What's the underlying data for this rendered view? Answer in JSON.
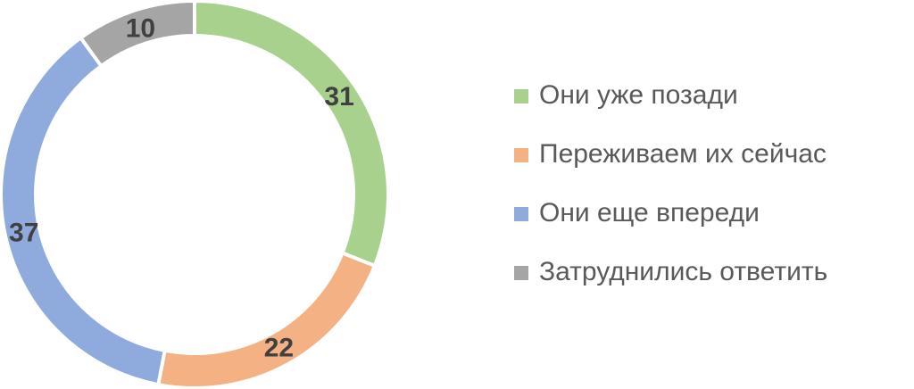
{
  "chart_data": {
    "type": "donut",
    "categories": [
      "Они уже позади",
      "Переживаем их сейчас",
      "Они еще впереди",
      "Затруднились ответить"
    ],
    "values": [
      31,
      22,
      37,
      10
    ],
    "colors": [
      "#a9d18e",
      "#f4b183",
      "#8faadc",
      "#a5a5a5"
    ],
    "legend": "right"
  }
}
